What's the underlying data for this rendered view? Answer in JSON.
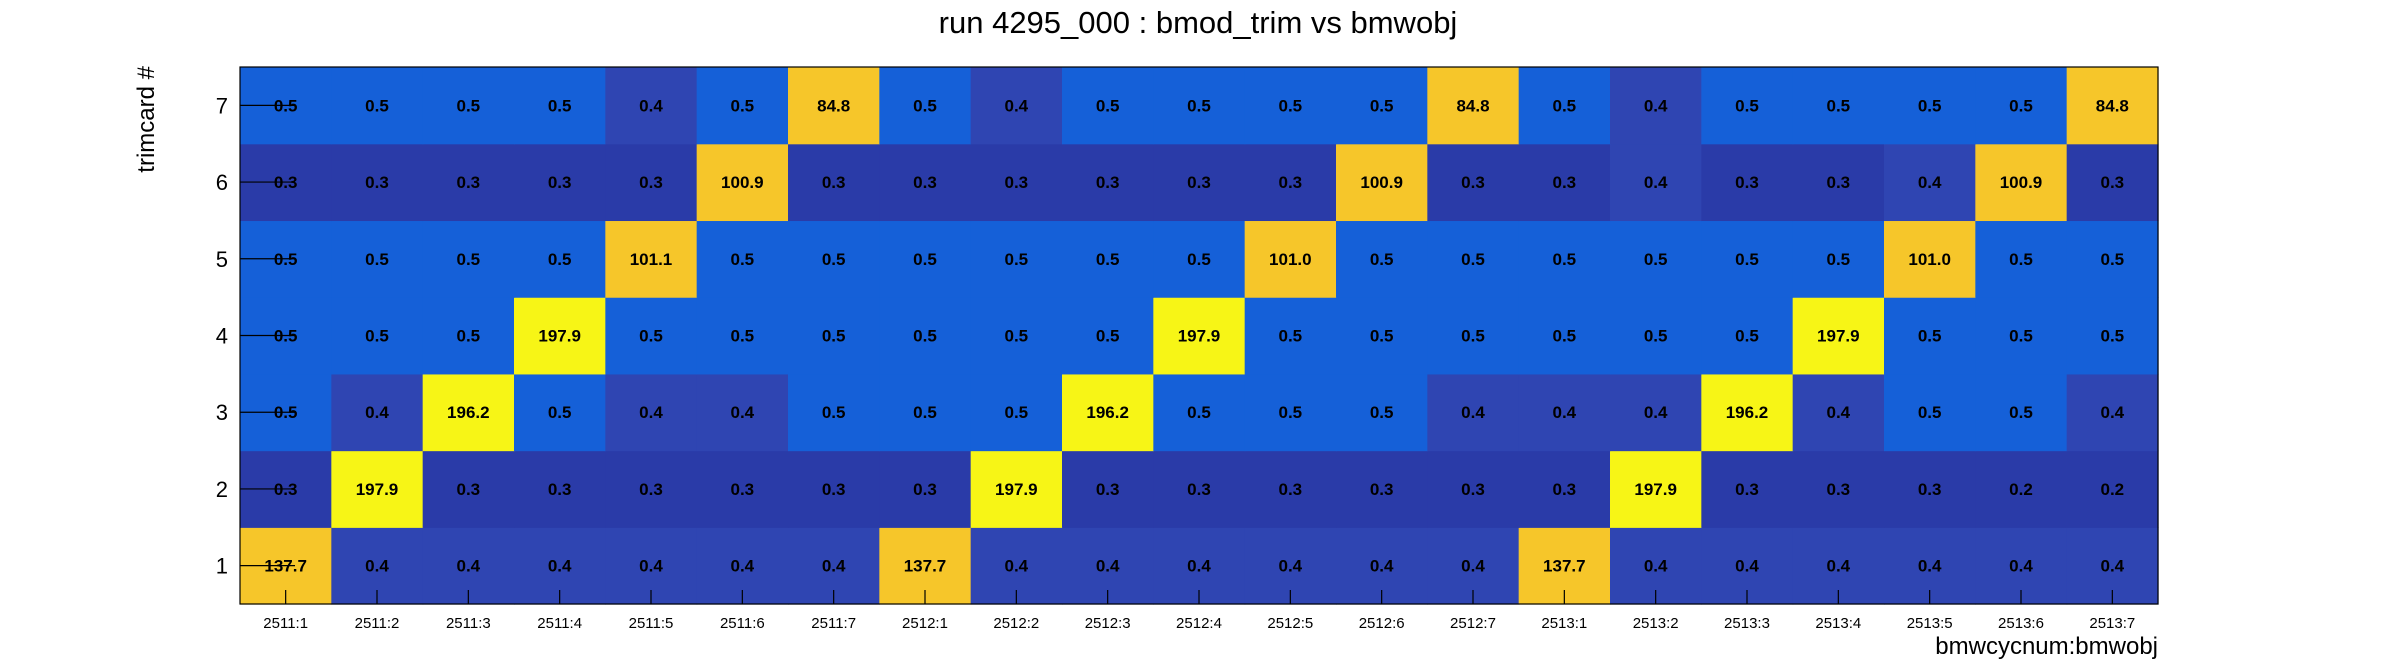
{
  "chart_data": {
    "type": "heatmap",
    "title": "run 4295_000 : bmod_trim vs bmwobj",
    "xlabel": "bmwcycnum:bmwobj",
    "ylabel": "trimcard #",
    "x_categories": [
      "2511:1",
      "2511:2",
      "2511:3",
      "2511:4",
      "2511:5",
      "2511:6",
      "2511:7",
      "2512:1",
      "2512:2",
      "2512:3",
      "2512:4",
      "2512:5",
      "2512:6",
      "2512:7",
      "2513:1",
      "2513:2",
      "2513:3",
      "2513:4",
      "2513:5",
      "2513:6",
      "2513:7"
    ],
    "y_categories": [
      "1",
      "2",
      "3",
      "4",
      "5",
      "6",
      "7"
    ],
    "values": [
      [
        "137.7",
        "0.4",
        "0.4",
        "0.4",
        "0.4",
        "0.4",
        "0.4",
        "137.7",
        "0.4",
        "0.4",
        "0.4",
        "0.4",
        "0.4",
        "0.4",
        "137.7",
        "0.4",
        "0.4",
        "0.4",
        "0.4",
        "0.4",
        "0.4"
      ],
      [
        "0.3",
        "197.9",
        "0.3",
        "0.3",
        "0.3",
        "0.3",
        "0.3",
        "0.3",
        "197.9",
        "0.3",
        "0.3",
        "0.3",
        "0.3",
        "0.3",
        "0.3",
        "197.9",
        "0.3",
        "0.3",
        "0.3",
        "0.2",
        "0.2"
      ],
      [
        "0.5",
        "0.4",
        "196.2",
        "0.5",
        "0.4",
        "0.4",
        "0.5",
        "0.5",
        "0.5",
        "196.2",
        "0.5",
        "0.5",
        "0.5",
        "0.4",
        "0.4",
        "0.4",
        "196.2",
        "0.4",
        "0.5",
        "0.5",
        "0.4"
      ],
      [
        "0.5",
        "0.5",
        "0.5",
        "197.9",
        "0.5",
        "0.5",
        "0.5",
        "0.5",
        "0.5",
        "0.5",
        "197.9",
        "0.5",
        "0.5",
        "0.5",
        "0.5",
        "0.5",
        "0.5",
        "197.9",
        "0.5",
        "0.5",
        "0.5"
      ],
      [
        "0.5",
        "0.5",
        "0.5",
        "0.5",
        "101.1",
        "0.5",
        "0.5",
        "0.5",
        "0.5",
        "0.5",
        "0.5",
        "101.0",
        "0.5",
        "0.5",
        "0.5",
        "0.5",
        "0.5",
        "0.5",
        "101.0",
        "0.5",
        "0.5"
      ],
      [
        "0.3",
        "0.3",
        "0.3",
        "0.3",
        "0.3",
        "100.9",
        "0.3",
        "0.3",
        "0.3",
        "0.3",
        "0.3",
        "0.3",
        "100.9",
        "0.3",
        "0.3",
        "0.4",
        "0.3",
        "0.3",
        "0.4",
        "100.9",
        "0.3"
      ],
      [
        "0.5",
        "0.5",
        "0.5",
        "0.5",
        "0.4",
        "0.5",
        "84.8",
        "0.5",
        "0.4",
        "0.5",
        "0.5",
        "0.5",
        "0.5",
        "84.8",
        "0.5",
        "0.4",
        "0.5",
        "0.5",
        "0.5",
        "0.5",
        "84.8"
      ]
    ],
    "colorscale": {
      "low": "#2a3ba8",
      "mid_low": "#2f45b2",
      "mid": "#1560d8",
      "high_mid": "#f6c62a",
      "high": "#f7f516"
    },
    "grid": false,
    "legend": "none"
  }
}
